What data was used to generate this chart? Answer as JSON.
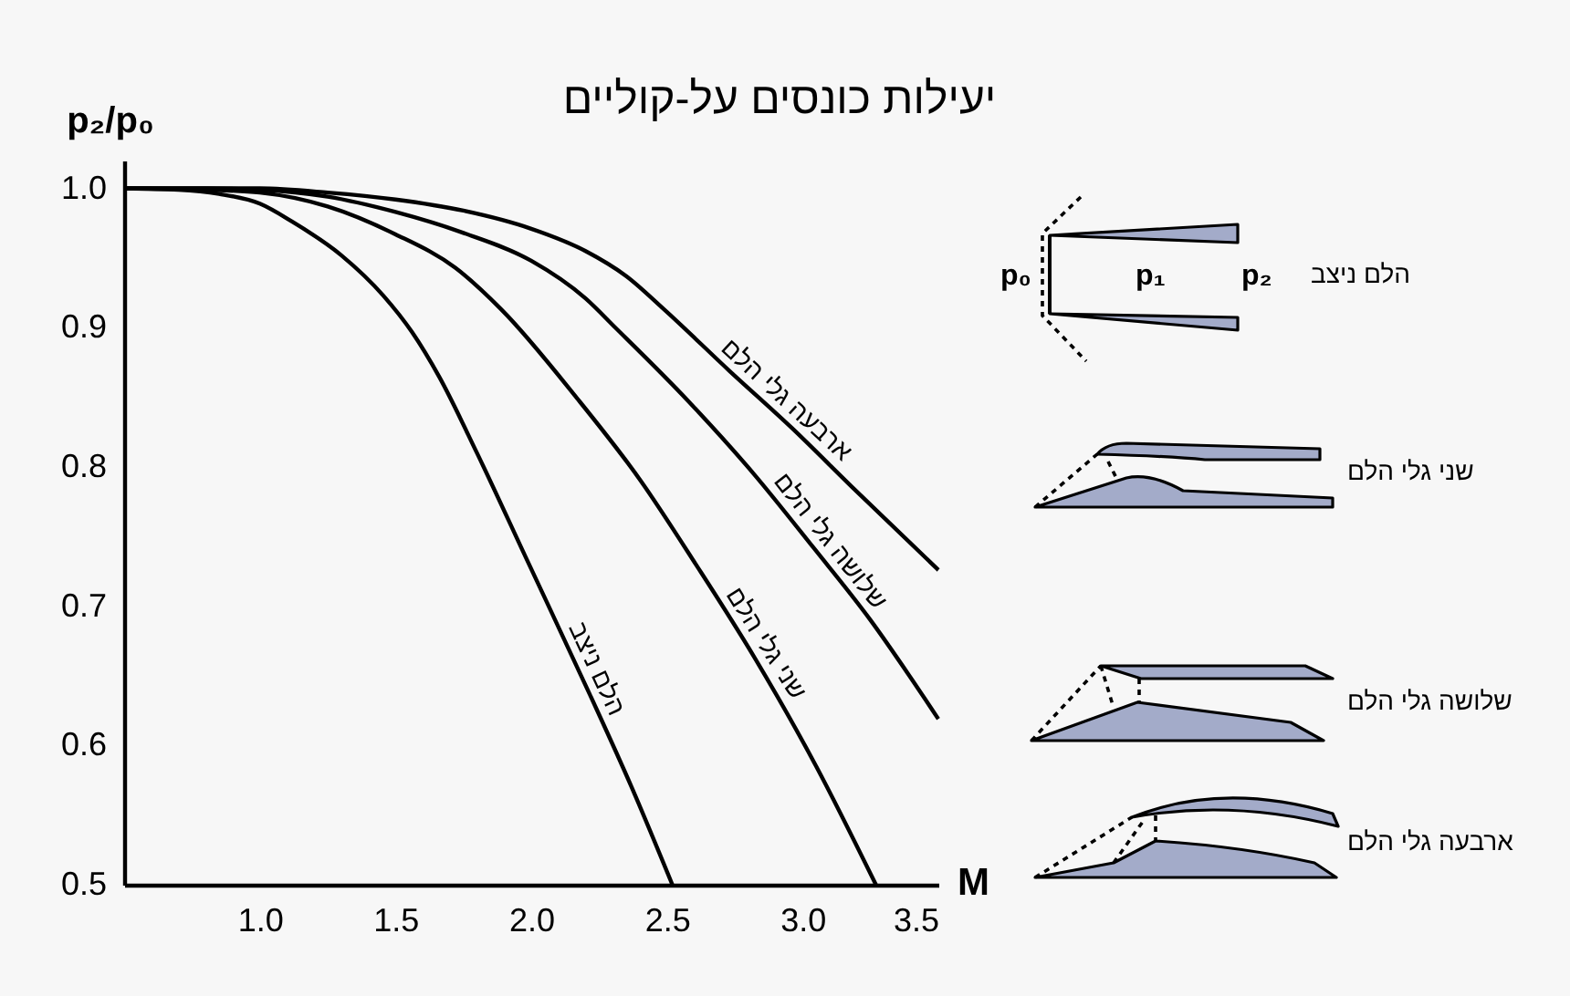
{
  "chart_data": {
    "type": "line",
    "title": "יעילות כונסים על-קוליים",
    "xlabel": "M",
    "ylabel": "p₂/p₀",
    "xlim": [
      0.5,
      3.5
    ],
    "ylim": [
      0.5,
      1.02
    ],
    "xticks": [
      {
        "value": 1,
        "label": "1.0"
      },
      1.5,
      {
        "value": 2,
        "label": "2.0"
      },
      2.5,
      {
        "value": 3,
        "label": "3.0"
      },
      3.5
    ],
    "yticks": [
      0.5,
      0.6,
      0.7,
      0.8,
      0.9,
      {
        "value": 1,
        "label": "1.0"
      }
    ],
    "series": [
      {
        "name": "הלם ניצב",
        "color": "#000000",
        "x": [
          0.5,
          0.7,
          0.85,
          1.0,
          1.12,
          1.3,
          1.455,
          1.56,
          1.66,
          1.8,
          1.98,
          2.215,
          2.37,
          2.52
        ],
        "values": [
          1.0,
          0.999,
          0.996,
          0.989,
          0.976,
          0.952,
          0.923,
          0.897,
          0.865,
          0.81,
          0.735,
          0.637,
          0.57,
          0.5
        ]
      },
      {
        "name": "שני גלי הלם",
        "color": "#000000",
        "x": [
          0.5,
          0.8,
          1.0,
          1.25,
          1.5,
          1.72,
          1.89,
          2.17,
          2.4,
          2.61,
          2.82,
          3.05,
          3.27
        ],
        "values": [
          1.0,
          0.999,
          0.997,
          0.987,
          0.967,
          0.943,
          0.913,
          0.849,
          0.791,
          0.729,
          0.664,
          0.585,
          0.5
        ]
      },
      {
        "name": "שלושה גלי הלם",
        "color": "#000000",
        "x": [
          0.5,
          0.8,
          1.0,
          1.25,
          1.5,
          1.75,
          2.0,
          2.2,
          2.31,
          2.58,
          2.82,
          3.04,
          3.25,
          3.39,
          3.5
        ],
        "values": [
          1.0,
          1.0,
          0.999,
          0.994,
          0.983,
          0.968,
          0.948,
          0.921,
          0.9,
          0.847,
          0.795,
          0.742,
          0.69,
          0.651,
          0.619
        ]
      },
      {
        "name": "ארבעה גלי הלם",
        "color": "#000000",
        "x": [
          0.5,
          0.8,
          1.0,
          1.25,
          1.5,
          1.75,
          2.0,
          2.2,
          2.35,
          2.49,
          2.73,
          2.96,
          3.18,
          3.5
        ],
        "values": [
          1.0,
          1.0,
          1.0,
          0.997,
          0.992,
          0.984,
          0.971,
          0.955,
          0.937,
          0.913,
          0.869,
          0.828,
          0.786,
          0.726
        ]
      }
    ],
    "annotations": [
      "p₀",
      "p₁",
      "p₂"
    ]
  }
}
